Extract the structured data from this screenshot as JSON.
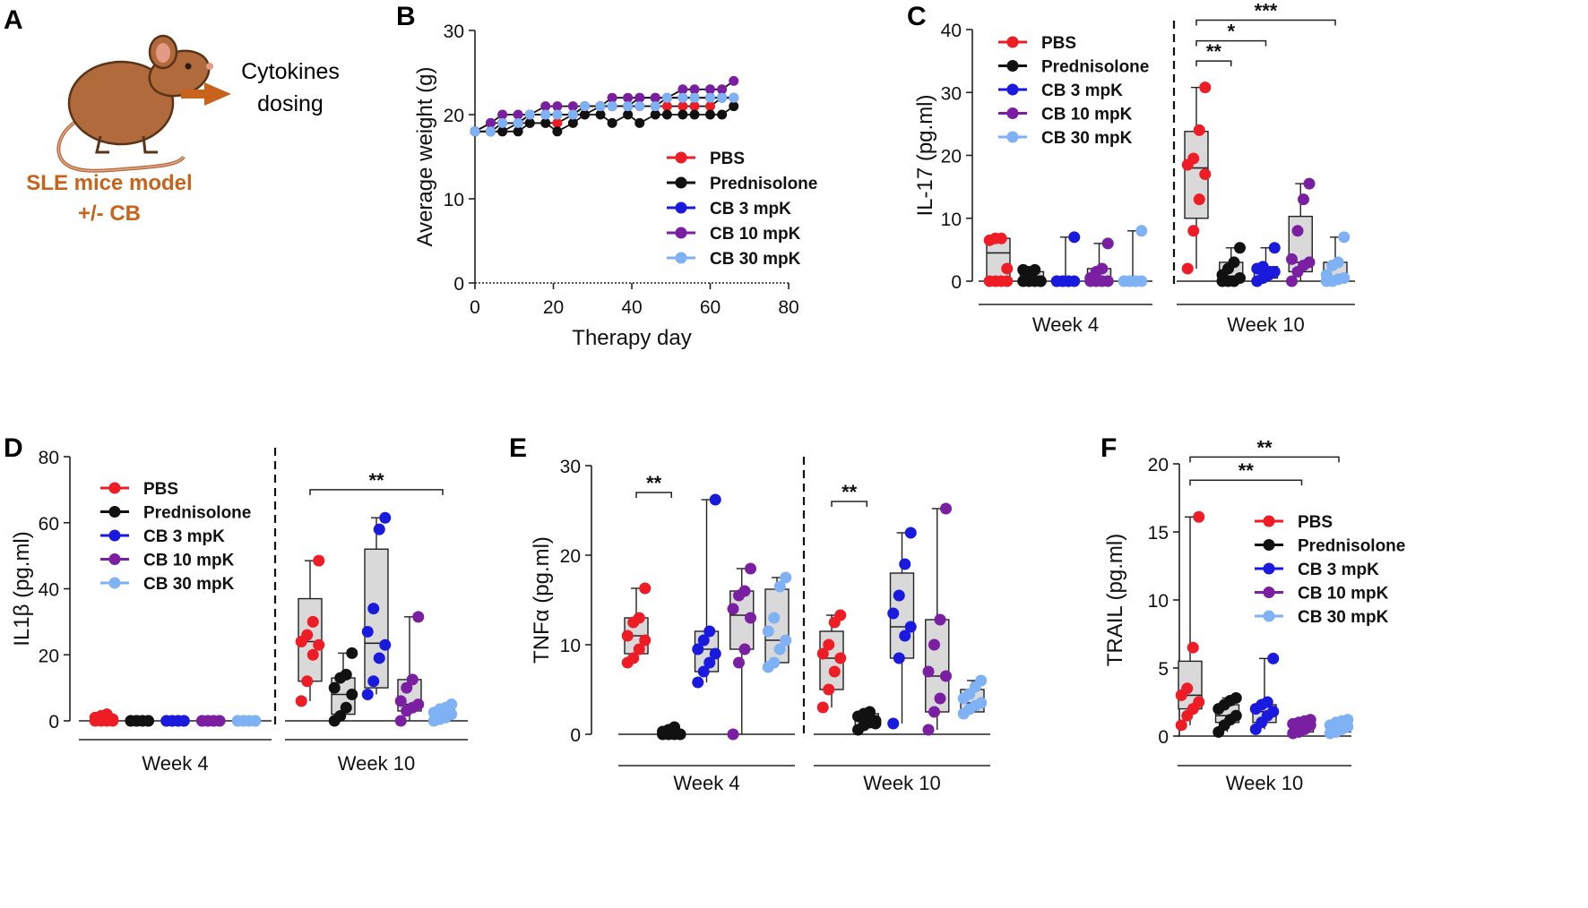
{
  "legend_labels": [
    "PBS",
    "Prednisolone",
    "CB 3 mpK",
    "CB 10 mpK",
    "CB 30 mpK"
  ],
  "group_colors": [
    "#ee1c25",
    "#111111",
    "#1a1adf",
    "#7b1fa2",
    "#7fb1f5"
  ],
  "panel_a": {
    "letter": "A",
    "dosing_label_1": "Cytokines",
    "dosing_label_2": "dosing",
    "model_label_1": "SLE mice model",
    "model_label_2": "+/- CB",
    "model_color": "#c8631b",
    "mouse_color": "#b06a3c",
    "mouse_icon": "mouse-icon",
    "arrow_icon": "right-arrow-icon"
  },
  "chart_data": [
    {
      "panel": "B",
      "type": "line",
      "xlabel": "Therapy day",
      "ylabel": "Average weight (g)",
      "xlim": [
        0,
        80
      ],
      "ylim": [
        0,
        30
      ],
      "xticks": [
        0,
        20,
        40,
        60,
        80
      ],
      "yticks": [
        0,
        10,
        20,
        30
      ],
      "x": [
        0,
        4,
        7,
        11,
        14,
        18,
        21,
        25,
        28,
        32,
        35,
        39,
        42,
        46,
        49,
        53,
        56,
        60,
        63,
        66
      ],
      "series": [
        {
          "name": "PBS",
          "values": [
            18,
            18,
            18,
            19,
            19,
            19,
            19,
            20,
            20,
            21,
            21,
            21,
            21,
            21,
            21,
            21,
            21,
            21,
            22,
            22
          ]
        },
        {
          "name": "Prednisolone",
          "values": [
            18,
            18,
            18,
            18,
            19,
            19,
            18,
            19,
            20,
            20,
            19,
            20,
            19,
            20,
            20,
            20,
            20,
            20,
            20,
            21
          ]
        },
        {
          "name": "CB 3 mpK",
          "values": [
            18,
            19,
            19,
            19,
            20,
            20,
            20,
            20,
            21,
            21,
            21,
            21,
            22,
            22,
            22,
            22,
            22,
            22,
            22,
            22
          ]
        },
        {
          "name": "CB 10 mpK",
          "values": [
            18,
            19,
            20,
            20,
            20,
            21,
            21,
            21,
            21,
            21,
            22,
            22,
            22,
            22,
            22,
            23,
            23,
            23,
            23,
            24
          ]
        },
        {
          "name": "CB 30 mpK",
          "values": [
            18,
            18,
            19,
            19,
            20,
            20,
            20,
            20,
            21,
            21,
            21,
            21,
            21,
            21,
            22,
            22,
            22,
            22,
            22,
            22
          ]
        }
      ],
      "legend": "right"
    },
    {
      "panel": "C",
      "type": "box",
      "ylabel": "IL-17 (pg.ml)",
      "ylim": [
        0,
        40
      ],
      "yticks": [
        0,
        10,
        20,
        30,
        40
      ],
      "groups": [
        {
          "label": "Week 4",
          "boxes": [
            {
              "q1": 0,
              "median": 4.5,
              "q3": 6.8,
              "min": 0,
              "max": 6.8,
              "points": [
                0,
                0,
                0,
                0,
                6.5,
                6.8,
                6.8,
                2
              ]
            },
            {
              "q1": 0,
              "median": 0.8,
              "q3": 1.5,
              "min": 0,
              "max": 1.8,
              "points": [
                0,
                0,
                0,
                0,
                1.8,
                1.5,
                1.8,
                0
              ]
            },
            {
              "q1": 0,
              "median": 0,
              "q3": 0.2,
              "min": 0,
              "max": 7,
              "points": [
                0,
                0,
                0,
                0,
                0,
                0,
                0,
                7
              ]
            },
            {
              "q1": 0,
              "median": 0.5,
              "q3": 2,
              "min": 0,
              "max": 6,
              "points": [
                0,
                0,
                0,
                0,
                0.5,
                1.5,
                2,
                6
              ]
            },
            {
              "q1": 0,
              "median": 0,
              "q3": 0.1,
              "min": 0,
              "max": 8,
              "points": [
                0,
                0,
                0,
                0,
                0,
                0,
                0,
                8
              ]
            }
          ]
        },
        {
          "label": "Week 10",
          "boxes": [
            {
              "q1": 10,
              "median": 18,
              "q3": 23.8,
              "min": 2,
              "max": 30.8,
              "points": [
                2,
                8,
                13,
                17,
                18.5,
                19.5,
                24,
                30.8
              ]
            },
            {
              "q1": 0,
              "median": 0.8,
              "q3": 3,
              "min": 0,
              "max": 5.3,
              "points": [
                0,
                0,
                0,
                0.5,
                1,
                2,
                3,
                5.3
              ]
            },
            {
              "q1": 0.5,
              "median": 1.5,
              "q3": 2.3,
              "min": 0,
              "max": 5.3,
              "points": [
                0,
                0.5,
                1,
                1.5,
                2,
                2.3,
                1.5,
                5.3
              ]
            },
            {
              "q1": 1.5,
              "median": 3,
              "q3": 10.3,
              "min": 0,
              "max": 15.5,
              "points": [
                0,
                1.5,
                2.5,
                3,
                3.5,
                8,
                13,
                15.5
              ]
            },
            {
              "q1": 0,
              "median": 0.5,
              "q3": 3,
              "min": 0,
              "max": 7,
              "points": [
                0,
                0,
                0.3,
                0.5,
                1,
                2.5,
                3,
                7
              ]
            }
          ]
        }
      ],
      "significance": [
        {
          "label": "**",
          "group": 1,
          "from": 0,
          "to": 1,
          "y": 35
        },
        {
          "label": "*",
          "group": 1,
          "from": 0,
          "to": 2,
          "y": 38.2
        },
        {
          "label": "***",
          "group": 1,
          "from": 0,
          "to": 4,
          "y": 41.5
        }
      ],
      "legend": "top-left"
    },
    {
      "panel": "D",
      "type": "box",
      "ylabel": "IL1β (pg.ml)",
      "ylim": [
        0,
        80
      ],
      "yticks": [
        0,
        20,
        40,
        60,
        80
      ],
      "groups": [
        {
          "label": "Week 4",
          "boxes": [
            {
              "q1": 0,
              "median": 0.3,
              "q3": 1,
              "min": 0,
              "max": 2,
              "points": [
                0,
                0,
                0,
                0.5,
                1,
                1.5,
                2,
                0
              ]
            },
            {
              "q1": 0,
              "median": 0,
              "q3": 0.3,
              "min": 0,
              "max": 0.5,
              "points": [
                0,
                0,
                0,
                0,
                0,
                0,
                0,
                0
              ]
            },
            {
              "q1": 0,
              "median": 0,
              "q3": 0.3,
              "min": 0,
              "max": 0.5,
              "points": [
                0,
                0,
                0,
                0,
                0,
                0,
                0,
                0
              ]
            },
            {
              "q1": 0,
              "median": 0,
              "q3": 0.3,
              "min": 0,
              "max": 0.5,
              "points": [
                0,
                0,
                0,
                0,
                0,
                0,
                0,
                0
              ]
            },
            {
              "q1": 0,
              "median": 0,
              "q3": 0.3,
              "min": 0,
              "max": 0.5,
              "points": [
                0,
                0,
                0,
                0,
                0,
                0,
                0,
                0
              ]
            }
          ]
        },
        {
          "label": "Week 10",
          "boxes": [
            {
              "q1": 12,
              "median": 24,
              "q3": 37,
              "min": 6,
              "max": 48.5,
              "points": [
                6,
                12,
                20,
                23,
                24,
                26,
                30,
                48.5
              ]
            },
            {
              "q1": 2,
              "median": 8,
              "q3": 13,
              "min": 0,
              "max": 20.5,
              "points": [
                0,
                1.5,
                4,
                8,
                10,
                13,
                14,
                20.5
              ]
            },
            {
              "q1": 10,
              "median": 23.5,
              "q3": 52,
              "min": 8,
              "max": 61.5,
              "points": [
                8,
                12,
                19,
                23,
                27,
                34,
                58,
                61.5
              ]
            },
            {
              "q1": 3,
              "median": 5,
              "q3": 12.5,
              "min": 0,
              "max": 31.5,
              "points": [
                0,
                3,
                4,
                5,
                6,
                10,
                12.5,
                31.5
              ]
            },
            {
              "q1": 1,
              "median": 2.5,
              "q3": 3.5,
              "min": 0,
              "max": 5,
              "points": [
                0,
                0.5,
                1,
                2,
                2.5,
                3.5,
                4,
                5
              ]
            }
          ]
        }
      ],
      "significance": [
        {
          "label": "**",
          "group": 1,
          "from": 0,
          "to": 4,
          "y": 70
        }
      ],
      "legend": "top-left"
    },
    {
      "panel": "E",
      "type": "box",
      "ylabel": "TNFα (pg.ml)",
      "ylim": [
        0,
        30
      ],
      "yticks": [
        0,
        10,
        20,
        30
      ],
      "groups": [
        {
          "label": "Week 4",
          "boxes": [
            {
              "q1": 9,
              "median": 11,
              "q3": 13,
              "min": 8,
              "max": 16.3,
              "points": [
                8,
                8.5,
                9.5,
                10.5,
                11,
                12.5,
                13,
                16.3
              ]
            },
            {
              "q1": 0,
              "median": 0,
              "q3": 0.3,
              "min": 0,
              "max": 0.8,
              "points": [
                0,
                0,
                0,
                0,
                0.3,
                0.5,
                0.8,
                0
              ]
            },
            {
              "q1": 7,
              "median": 9.5,
              "q3": 11.5,
              "min": 5.8,
              "max": 26.2,
              "points": [
                5.8,
                7,
                8,
                9,
                9.5,
                10.5,
                11.5,
                26.2
              ]
            },
            {
              "q1": 9.5,
              "median": 13.3,
              "q3": 16,
              "min": 0,
              "max": 18.5,
              "points": [
                0,
                8,
                9.5,
                13,
                14,
                15.5,
                16,
                18.5
              ]
            },
            {
              "q1": 8,
              "median": 10.5,
              "q3": 16.2,
              "min": 7.5,
              "max": 17.5,
              "points": [
                7.5,
                8,
                9.5,
                10.5,
                11.5,
                13,
                16.5,
                17.5
              ]
            }
          ]
        },
        {
          "label": "Week 10",
          "boxes": [
            {
              "q1": 5,
              "median": 8.5,
              "q3": 11.5,
              "min": 3,
              "max": 13.3,
              "points": [
                3,
                5,
                7,
                8.5,
                9,
                10,
                12.5,
                13.3
              ]
            },
            {
              "q1": 1,
              "median": 1.5,
              "q3": 2.3,
              "min": 0.5,
              "max": 2.5,
              "points": [
                0.5,
                1,
                1.3,
                1.5,
                2,
                2.3,
                2.5,
                1.2
              ]
            },
            {
              "q1": 8.5,
              "median": 12,
              "q3": 18,
              "min": 1.2,
              "max": 22.5,
              "points": [
                1.2,
                8.5,
                11,
                12,
                13.5,
                15.5,
                19,
                22.5
              ]
            },
            {
              "q1": 2.5,
              "median": 6.5,
              "q3": 12.8,
              "min": 0.5,
              "max": 25.2,
              "points": [
                0.5,
                2.5,
                4,
                6.5,
                7,
                10,
                12.8,
                25.2
              ]
            },
            {
              "q1": 2.5,
              "median": 3.5,
              "q3": 5,
              "min": 2.3,
              "max": 6,
              "points": [
                2.3,
                2.8,
                3.2,
                3.5,
                4,
                4.5,
                5.3,
                6
              ]
            }
          ]
        }
      ],
      "significance": [
        {
          "label": "**",
          "group": 0,
          "from": 0,
          "to": 1,
          "y": 27
        },
        {
          "label": "**",
          "group": 1,
          "from": 0,
          "to": 1,
          "y": 26
        }
      ],
      "legend": "none"
    },
    {
      "panel": "F",
      "type": "box",
      "ylabel": "TRAIL (pg.ml)",
      "ylim": [
        0,
        20
      ],
      "yticks": [
        0,
        5,
        10,
        15,
        20
      ],
      "groups": [
        {
          "label": "Week 10",
          "boxes": [
            {
              "q1": 2,
              "median": 3,
              "q3": 5.5,
              "min": 0.8,
              "max": 16.1,
              "points": [
                0.8,
                1.5,
                2,
                2.5,
                3,
                3.5,
                6.5,
                16.1
              ]
            },
            {
              "q1": 1,
              "median": 1.5,
              "q3": 2.3,
              "min": 0.3,
              "max": 2.8,
              "points": [
                0.3,
                0.8,
                1.2,
                1.5,
                2,
                2.3,
                2.6,
                2.8
              ]
            },
            {
              "q1": 1,
              "median": 1.8,
              "q3": 2.3,
              "min": 0.5,
              "max": 5.7,
              "points": [
                0.5,
                1,
                1.5,
                1.8,
                2,
                2.3,
                2.5,
                5.7
              ]
            },
            {
              "q1": 0.3,
              "median": 0.8,
              "q3": 1,
              "min": 0.2,
              "max": 1.2,
              "points": [
                0.2,
                0.3,
                0.5,
                0.8,
                0.9,
                1,
                1.1,
                1.2
              ]
            },
            {
              "q1": 0.3,
              "median": 0.7,
              "q3": 1,
              "min": 0.2,
              "max": 1.2,
              "points": [
                0.2,
                0.3,
                0.5,
                0.7,
                0.8,
                1,
                1.1,
                1.2
              ]
            }
          ]
        }
      ],
      "significance": [
        {
          "label": "**",
          "group": 0,
          "from": 0,
          "to": 3,
          "y": 18.8
        },
        {
          "label": "**",
          "group": 0,
          "from": 0,
          "to": 4,
          "y": 20.5
        }
      ],
      "legend": "right"
    }
  ]
}
